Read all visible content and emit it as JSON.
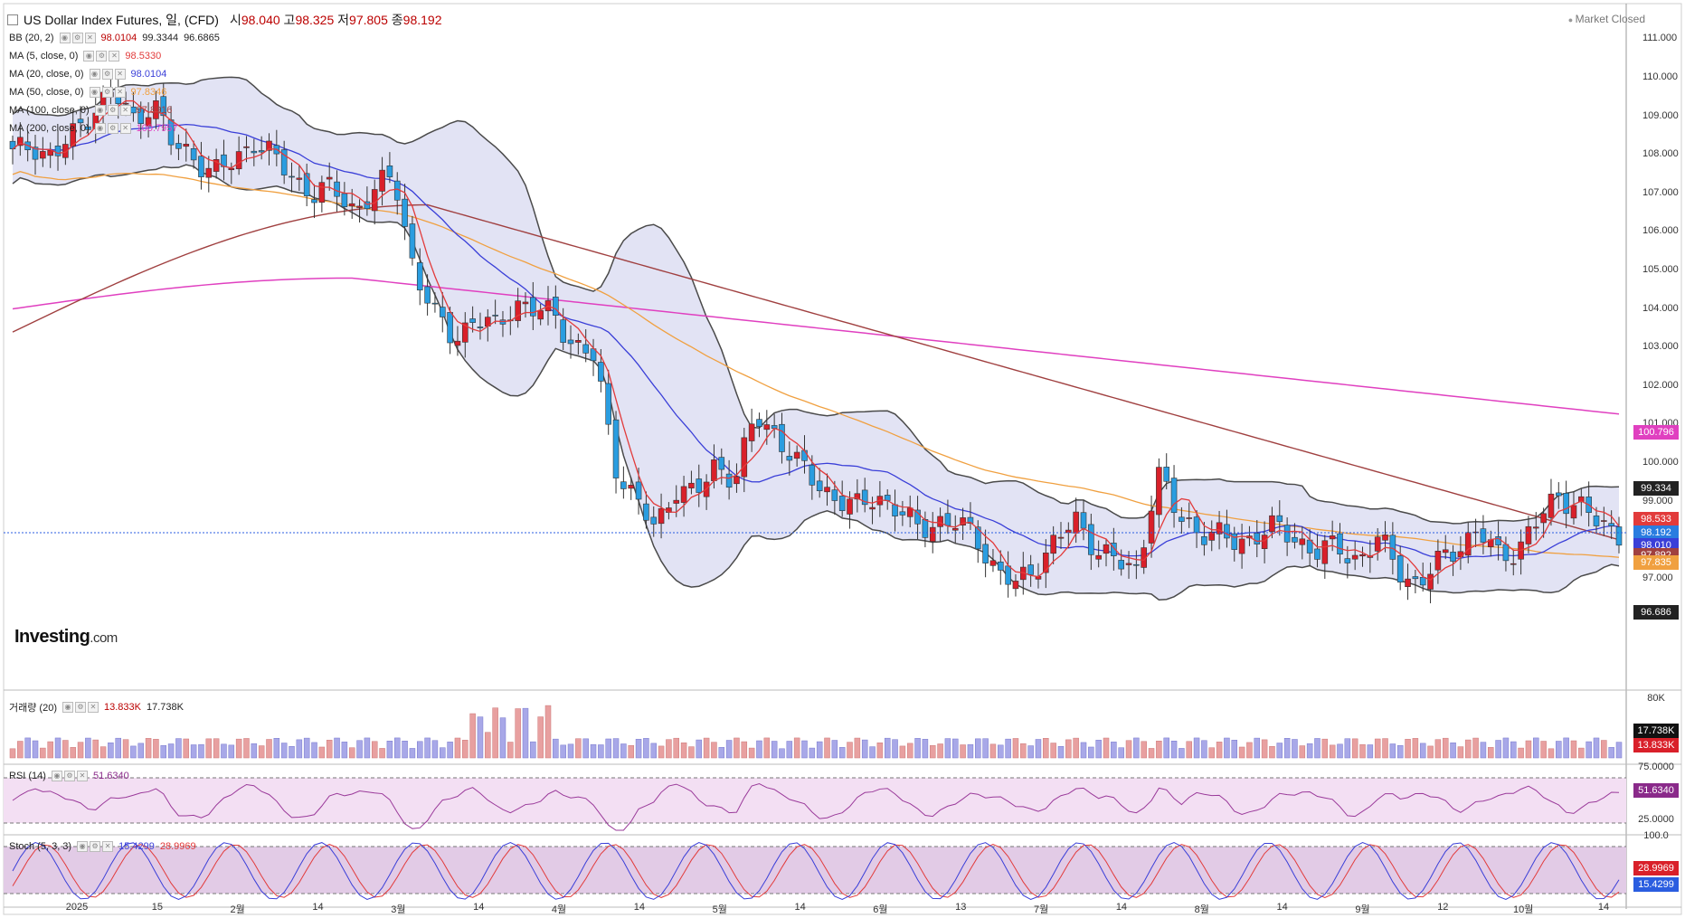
{
  "header": {
    "title": "US Dollar Index Futures, 일, (CFD)",
    "open_label": "시",
    "open": "98.040",
    "high_label": "고",
    "high": "98.325",
    "low_label": "저",
    "low": "97.805",
    "close_label": "종",
    "close": "98.192",
    "status": "Market Closed"
  },
  "indicators": [
    {
      "name": "BB (20, 2)",
      "v1": "98.0104",
      "v2": "99.3344",
      "v3": "96.6865"
    },
    {
      "name": "MA (5, close, 0)",
      "v1": "98.5330"
    },
    {
      "name": "MA (20, close, 0)",
      "v1": "98.0104"
    },
    {
      "name": "MA (50, close, 0)",
      "v1": "97.8346"
    },
    {
      "name": "MA (100, close, 0)",
      "v1": "97.8916"
    },
    {
      "name": "MA (200, close, 0)",
      "v1": "100.7957"
    }
  ],
  "volume_legend": {
    "name": "거래량 (20)",
    "v1": "13.833K",
    "v2": "17.738K"
  },
  "rsi_legend": {
    "name": "RSI (14)",
    "v1": "51.6340"
  },
  "stoch_legend": {
    "name": "Stoch (5, 3, 3)",
    "v1": "15.4299",
    "v2": "28.9969"
  },
  "logo": {
    "text": "Investing",
    "suffix": ".com"
  },
  "colors": {
    "up": "#d9202a",
    "down": "#2a9de0",
    "bb": "#4a4a4a",
    "bb_fill": "#d8daf0",
    "ma5": "#e23b3b",
    "ma20": "#3a3fd8",
    "ma50": "#f0a040",
    "ma100": "#a04040",
    "ma200": "#e040c0"
  },
  "chart_data": {
    "type": "candlestick",
    "title": "US Dollar Index Futures, 일, (CFD)",
    "y_ticks": [
      "111.000",
      "110.000",
      "109.000",
      "108.000",
      "107.000",
      "106.000",
      "105.000",
      "104.000",
      "103.000",
      "102.000",
      "101.000",
      "100.000",
      "99.000",
      "98.000",
      "97.000",
      "96.000"
    ],
    "y_range": [
      95.0,
      111.5
    ],
    "x_ticks": [
      "2025",
      "15",
      "2월",
      "14",
      "3월",
      "14",
      "4월",
      "14",
      "5월",
      "14",
      "6월",
      "13",
      "7월",
      "14",
      "8월",
      "14",
      "9월",
      "12",
      "10월",
      "14"
    ],
    "last_price": 98.192,
    "price_tags": [
      {
        "value": "100.796",
        "color": "#e040c0"
      },
      {
        "value": "99.334",
        "color": "#222222"
      },
      {
        "value": "98.533",
        "color": "#e23b3b"
      },
      {
        "value": "98.192",
        "color": "#2a7de0"
      },
      {
        "value": "98.010",
        "color": "#3a3fd8"
      },
      {
        "value": "97.892",
        "color": "#a04040"
      },
      {
        "value": "97.835",
        "color": "#f0a040"
      },
      {
        "value": "96.686",
        "color": "#222222"
      }
    ],
    "close_path": [
      108.0,
      108.3,
      107.9,
      108.5,
      109.2,
      109.6,
      108.9,
      109.4,
      108.2,
      108.0,
      107.5,
      107.8,
      108.4,
      107.9,
      107.4,
      107.0,
      107.1,
      106.6,
      107.0,
      107.5,
      105.0,
      103.8,
      103.3,
      103.7,
      103.5,
      104.2,
      103.9,
      103.9,
      103.0,
      102.7,
      100.0,
      99.0,
      98.3,
      99.4,
      99.1,
      100.0,
      99.6,
      101.2,
      100.8,
      100.0,
      99.5,
      99.1,
      98.8,
      99.2,
      98.8,
      98.3,
      98.5,
      98.4,
      98.1,
      97.2,
      96.8,
      97.4,
      98.0,
      98.5,
      97.8,
      97.4,
      97.2,
      99.8,
      98.6,
      98.3,
      98.1,
      97.9,
      98.2,
      98.3,
      98.0,
      97.7,
      97.8,
      97.5,
      98.0,
      97.3,
      96.8,
      97.4,
      97.9,
      98.2,
      97.6,
      97.8,
      98.5,
      99.2,
      98.9,
      98.4,
      98.2
    ],
    "volume_range_k": [
      0,
      80
    ],
    "volume_labels": [
      "80K",
      "17.738K",
      "13.833K"
    ],
    "rsi_range": [
      25,
      75
    ],
    "rsi_labels": [
      "75.0000",
      "51.6340",
      "25.0000"
    ],
    "stoch_range": [
      0,
      100
    ],
    "stoch_labels": [
      "100.0",
      "28.9969",
      "15.4299"
    ]
  }
}
